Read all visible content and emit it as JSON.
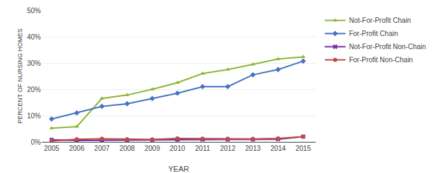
{
  "chart_data": {
    "type": "line",
    "x": [
      2005,
      2006,
      2007,
      2008,
      2009,
      2010,
      2011,
      2012,
      2013,
      2014,
      2015
    ],
    "series": [
      {
        "name": "Not-For-Profit Chain",
        "color": "#8db535",
        "marker": "triangle-up",
        "values": [
          5.2,
          5.8,
          16.5,
          17.8,
          20.0,
          22.5,
          26.0,
          27.5,
          29.5,
          31.5,
          32.3
        ]
      },
      {
        "name": "For-Profit Chain",
        "color": "#4472c4",
        "marker": "diamond",
        "values": [
          8.7,
          11.0,
          13.5,
          14.5,
          16.5,
          18.5,
          21.0,
          21.0,
          25.5,
          27.5,
          30.7
        ]
      },
      {
        "name": "Not-For-Profit Non-Chain",
        "color": "#7030a0",
        "marker": "x",
        "values": [
          0.8,
          0.5,
          0.6,
          0.6,
          0.7,
          0.8,
          0.9,
          0.9,
          0.9,
          1.0,
          2.0
        ]
      },
      {
        "name": "For-Profit Non-Chain",
        "color": "#be4b48",
        "marker": "circle",
        "values": [
          0.3,
          1.0,
          1.2,
          1.0,
          0.9,
          1.3,
          1.2,
          1.2,
          1.1,
          1.3,
          2.0
        ]
      }
    ],
    "xlabel": "YEAR",
    "ylabel": "PERCENT OF NURSING HOMES",
    "xlim": [
      2004.6,
      2015.5
    ],
    "xticks": [
      2005,
      2006,
      2007,
      2008,
      2009,
      2010,
      2011,
      2012,
      2013,
      2014,
      2015
    ],
    "ylim": [
      0,
      50
    ],
    "yticks": [
      {
        "value": 0,
        "label": "0%"
      },
      {
        "value": 10,
        "label": "10%"
      },
      {
        "value": 20,
        "label": "20%"
      },
      {
        "value": 30,
        "label": "30%"
      },
      {
        "value": 40,
        "label": "40%"
      },
      {
        "value": 50,
        "label": "50%"
      }
    ],
    "grid": "y",
    "legend": "right"
  }
}
